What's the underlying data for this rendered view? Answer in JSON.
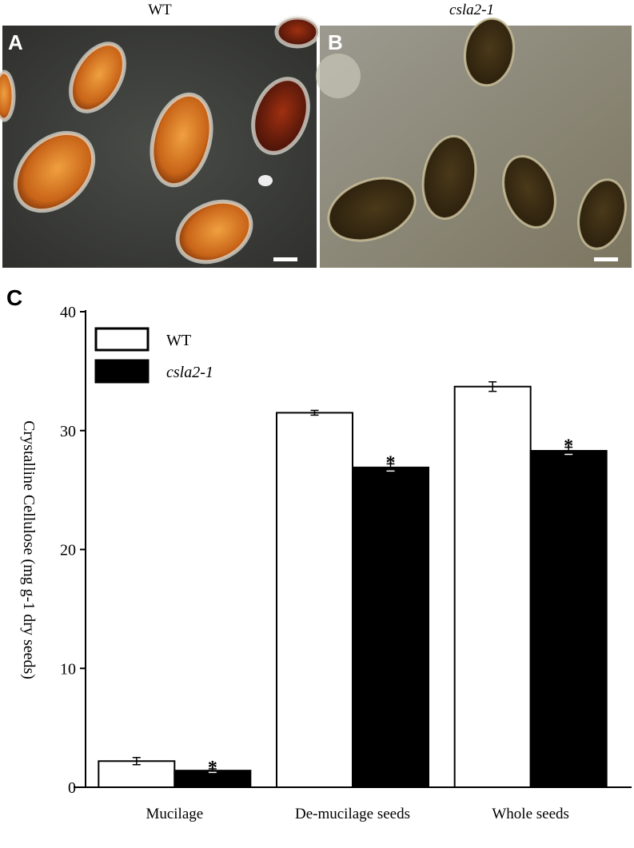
{
  "photos": {
    "column_labels": [
      "WT",
      "csla2-1"
    ],
    "panel_labels": [
      "A",
      "B"
    ]
  },
  "chart_data": {
    "type": "bar",
    "panel_label": "C",
    "y_label": "Crystalline Cellulose (mg g-1 dry seeds)",
    "categories": [
      "Mucilage",
      "De-mucilage seeds",
      "Whole seeds"
    ],
    "series": [
      {
        "name": "WT",
        "color": "#ffffff",
        "values": [
          2.2,
          31.5,
          33.7
        ],
        "errors": [
          0.3,
          0.2,
          0.4
        ]
      },
      {
        "name": "csla2-1",
        "color": "#000000",
        "values": [
          1.4,
          26.9,
          28.3
        ],
        "errors": [
          0.15,
          0.3,
          0.3
        ],
        "annotations": [
          "*",
          "*",
          "*"
        ]
      }
    ],
    "ylim": [
      0,
      40
    ],
    "yticks": [
      0,
      10,
      20,
      30,
      40
    ]
  }
}
